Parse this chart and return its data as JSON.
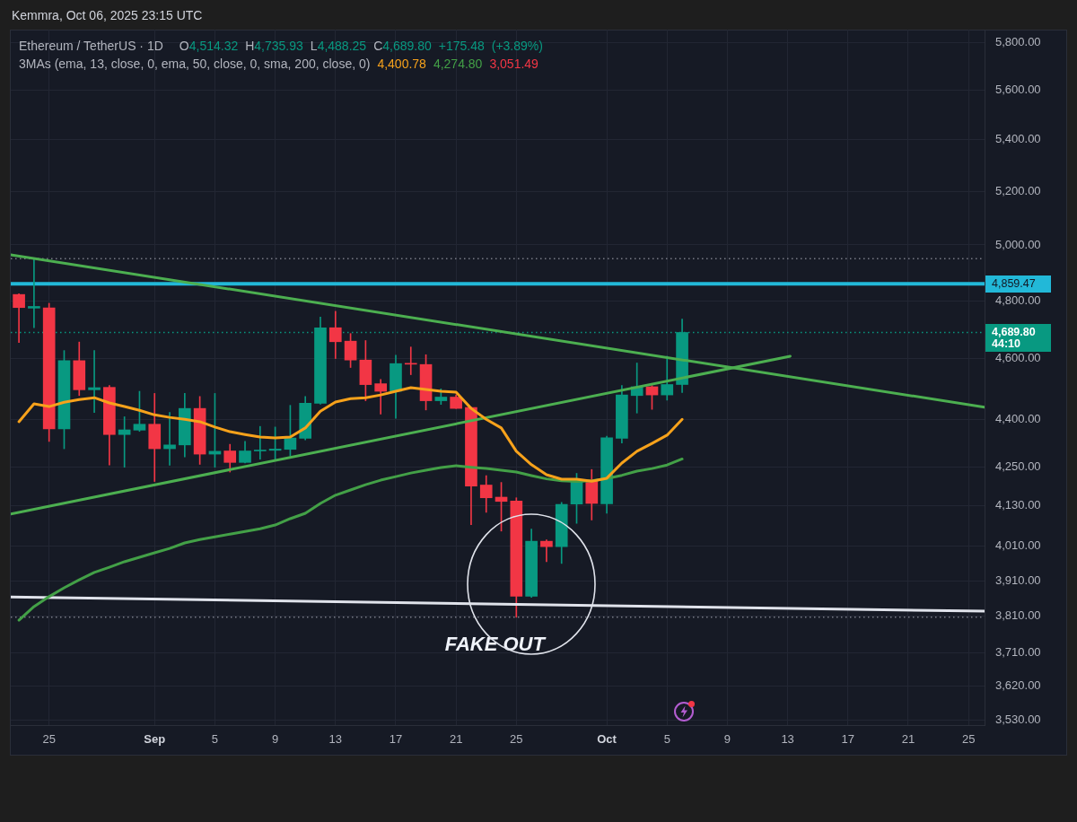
{
  "chart_data": {
    "type": "candlestick",
    "title": "Ethereum / TetherUS · 1D",
    "subtitle": "O4,514.32 H4,735.93 L4,488.25 C4,689.80 +175.48 (+3.89%)",
    "x": [
      "2025-08-23",
      "2025-08-24",
      "2025-08-25",
      "2025-08-26",
      "2025-08-27",
      "2025-08-28",
      "2025-08-29",
      "2025-08-30",
      "2025-08-31",
      "2025-09-01",
      "2025-09-02",
      "2025-09-03",
      "2025-09-04",
      "2025-09-05",
      "2025-09-06",
      "2025-09-07",
      "2025-09-08",
      "2025-09-09",
      "2025-09-10",
      "2025-09-11",
      "2025-09-12",
      "2025-09-13",
      "2025-09-14",
      "2025-09-15",
      "2025-09-16",
      "2025-09-17",
      "2025-09-18",
      "2025-09-19",
      "2025-09-20",
      "2025-09-21",
      "2025-09-22",
      "2025-09-23",
      "2025-09-24",
      "2025-09-25",
      "2025-09-26",
      "2025-09-27",
      "2025-09-28",
      "2025-09-29",
      "2025-09-30",
      "2025-10-01",
      "2025-10-02",
      "2025-10-03",
      "2025-10-04",
      "2025-10-05",
      "2025-10-06"
    ],
    "ohlc": [
      [
        4822,
        4825,
        4655,
        4776
      ],
      [
        4774,
        4950,
        4706,
        4780
      ],
      [
        4775,
        4791,
        4330,
        4370
      ],
      [
        4370,
        4628,
        4307,
        4594
      ],
      [
        4594,
        4657,
        4478,
        4497
      ],
      [
        4497,
        4628,
        4423,
        4504
      ],
      [
        4505,
        4511,
        4256,
        4352
      ],
      [
        4352,
        4409,
        4249,
        4367
      ],
      [
        4366,
        4492,
        4362,
        4385
      ],
      [
        4385,
        4485,
        4205,
        4307
      ],
      [
        4307,
        4423,
        4255,
        4319
      ],
      [
        4319,
        4485,
        4281,
        4436
      ],
      [
        4436,
        4475,
        4258,
        4290
      ],
      [
        4290,
        4485,
        4249,
        4299
      ],
      [
        4300,
        4321,
        4234,
        4264
      ],
      [
        4264,
        4330,
        4262,
        4300
      ],
      [
        4300,
        4378,
        4274,
        4302
      ],
      [
        4302,
        4376,
        4274,
        4306
      ],
      [
        4305,
        4446,
        4284,
        4341
      ],
      [
        4340,
        4475,
        4335,
        4453
      ],
      [
        4453,
        4743,
        4450,
        4706
      ],
      [
        4706,
        4763,
        4601,
        4658
      ],
      [
        4660,
        4686,
        4571,
        4596
      ],
      [
        4596,
        4662,
        4461,
        4514
      ],
      [
        4517,
        4531,
        4418,
        4492
      ],
      [
        4492,
        4612,
        4404,
        4584
      ],
      [
        4585,
        4640,
        4547,
        4582
      ],
      [
        4581,
        4614,
        4431,
        4461
      ],
      [
        4461,
        4500,
        4449,
        4473
      ],
      [
        4473,
        4480,
        4436,
        4436
      ],
      [
        4439,
        4440,
        4074,
        4191
      ],
      [
        4194,
        4223,
        4111,
        4155
      ],
      [
        4157,
        4202,
        4055,
        4144
      ],
      [
        4145,
        4155,
        3807,
        3866
      ],
      [
        3866,
        4061,
        3863,
        4025
      ],
      [
        4025,
        4029,
        3965,
        4009
      ],
      [
        4009,
        4141,
        3960,
        4135
      ],
      [
        4136,
        4230,
        4078,
        4209
      ],
      [
        4209,
        4242,
        4088,
        4138
      ],
      [
        4137,
        4347,
        4108,
        4342
      ],
      [
        4340,
        4511,
        4325,
        4480
      ],
      [
        4478,
        4586,
        4421,
        4507
      ],
      [
        4507,
        4511,
        4433,
        4480
      ],
      [
        4480,
        4609,
        4463,
        4514.32
      ],
      [
        4514.32,
        4735.93,
        4488.25,
        4689.8
      ]
    ],
    "colors": [
      "#f23645",
      "#089981",
      "#f23645",
      "#089981",
      "#f23645",
      "#089981",
      "#f23645",
      "#089981",
      "#089981",
      "#f23645",
      "#089981",
      "#089981",
      "#f23645",
      "#089981",
      "#f23645",
      "#089981",
      "#089981",
      "#089981",
      "#089981",
      "#089981",
      "#089981",
      "#f23645",
      "#f23645",
      "#f23645",
      "#f23645",
      "#089981",
      "#f23645",
      "#f23645",
      "#089981",
      "#f23645",
      "#f23645",
      "#f23645",
      "#f23645",
      "#f23645",
      "#089981",
      "#f23645",
      "#089981",
      "#089981",
      "#f23645",
      "#089981",
      "#089981",
      "#089981",
      "#f23645",
      "#089981",
      "#089981"
    ],
    "series": [
      {
        "type": "line",
        "color": "#f7a21b",
        "values": [
          4393,
          4451,
          4442,
          4456,
          4465,
          4471,
          4454,
          4442,
          4430,
          4415,
          4407,
          4401,
          4393,
          4376,
          4361,
          4352,
          4344,
          4341,
          4344,
          4373,
          4427,
          4457,
          4468,
          4471,
          4480,
          4492,
          4504,
          4498,
          4492,
          4489,
          4436,
          4401,
          4373,
          4299,
          4257,
          4226,
          4212,
          4212,
          4206,
          4215,
          4262,
          4299,
          4324,
          4350,
          4400.78
        ]
      },
      {
        "type": "line",
        "color": "#43a047",
        "values": [
          3799,
          3837,
          3865,
          3890,
          3913,
          3934,
          3949,
          3965,
          3978,
          3991,
          4004,
          4020,
          4030,
          4038,
          4046,
          4054,
          4062,
          4073,
          4092,
          4108,
          4138,
          4163,
          4179,
          4195,
          4209,
          4220,
          4231,
          4240,
          4248,
          4254,
          4249,
          4245,
          4240,
          4234,
          4223,
          4213,
          4207,
          4205,
          4207,
          4214,
          4224,
          4237,
          4245,
          4256,
          4274.8
        ]
      },
      {
        "type": "line",
        "color": "#f23645",
        "values": [
          null,
          null,
          null,
          null,
          null,
          null,
          null,
          null,
          null,
          null,
          null,
          null,
          null,
          null,
          null,
          null,
          null,
          null,
          null,
          null,
          null,
          null,
          null,
          null,
          null,
          null,
          null,
          null,
          null,
          null,
          null,
          null,
          null,
          null,
          null,
          null,
          null,
          null,
          null,
          null,
          null,
          null,
          null,
          null,
          null
        ]
      },
      {
        "type": "line",
        "color": "#4caf50",
        "x": [
          "2025-08-22T11:00",
          "2025-10-26T01:30"
        ],
        "values": [
          4964,
          4440
        ]
      },
      {
        "type": "line",
        "color": "#4caf50",
        "x": [
          "2025-08-22T11:00",
          "2025-10-13T04:00"
        ],
        "values": [
          4106,
          4609
        ]
      },
      {
        "type": "line",
        "color": "#e0e3eb",
        "x": [
          "2025-08-22T11:00",
          "2025-10-26T01:30"
        ],
        "values": [
          3864,
          3824
        ]
      }
    ],
    "xlim": [
      "2025-08-22T11:00",
      "2025-10-26T01:30"
    ],
    "xticks": [
      {
        "value": "2025-08-25",
        "label": "25"
      },
      {
        "value": "2025-09-01",
        "label": "Sep"
      },
      {
        "value": "2025-09-05",
        "label": "5"
      },
      {
        "value": "2025-09-09",
        "label": "9"
      },
      {
        "value": "2025-09-13",
        "label": "13"
      },
      {
        "value": "2025-09-17",
        "label": "17"
      },
      {
        "value": "2025-09-21",
        "label": "21"
      },
      {
        "value": "2025-09-25",
        "label": "25"
      },
      {
        "value": "2025-10-01",
        "label": "Oct"
      },
      {
        "value": "2025-10-05",
        "label": "5"
      },
      {
        "value": "2025-10-09",
        "label": "9"
      },
      {
        "value": "2025-10-13",
        "label": "13"
      },
      {
        "value": "2025-10-17",
        "label": "17"
      },
      {
        "value": "2025-10-21",
        "label": "21"
      },
      {
        "value": "2025-10-25",
        "label": "25"
      }
    ],
    "ylim": [
      3518,
      5854
    ],
    "yticks": [
      {
        "value": 3530,
        "label": "3,530.00"
      },
      {
        "value": 3620,
        "label": "3,620.00"
      },
      {
        "value": 3710,
        "label": "3,710.00"
      },
      {
        "value": 3810,
        "label": "3,810.00"
      },
      {
        "value": 3910,
        "label": "3,910.00"
      },
      {
        "value": 4010,
        "label": "4,010.00"
      },
      {
        "value": 4130,
        "label": "4,130.00"
      },
      {
        "value": 4250,
        "label": "4,250.00"
      },
      {
        "value": 4400,
        "label": "4,400.00"
      },
      {
        "value": 4600,
        "label": "4,600.00"
      },
      {
        "value": 4800,
        "label": "4,800.00"
      },
      {
        "value": 5000,
        "label": "5,000.00"
      },
      {
        "value": 5200,
        "label": "5,200.00"
      },
      {
        "value": 5400,
        "label": "5,400.00"
      },
      {
        "value": 5600,
        "label": "5,600.00"
      },
      {
        "value": 5800,
        "label": "5,800.00"
      }
    ],
    "log": "y",
    "grid": true,
    "ref_lines": [
      {
        "axis": "y",
        "value": 4950,
        "color": "#787b86",
        "line_style": "dotted"
      },
      {
        "axis": "y",
        "value": 4859.47,
        "label": "4,859.47",
        "color": "#22b8d8",
        "line_style": "solid"
      },
      {
        "axis": "y",
        "value": 4689.8,
        "label": "4,689.80",
        "color": "#089981",
        "line_style": "dotted"
      },
      {
        "axis": "y",
        "value": 3807,
        "color": "#787b86",
        "line_style": "dotted"
      }
    ],
    "annotations": [
      "Kemmra, Oct 06, 2025 23:15 UTC",
      "3MAs (ema, 13, close, 0, ema, 50, close, 0, sma, 200, close, 0)",
      "4,400.78",
      "4,274.80",
      "3,051.49",
      "44:10",
      "FAKE OUT"
    ]
  }
}
